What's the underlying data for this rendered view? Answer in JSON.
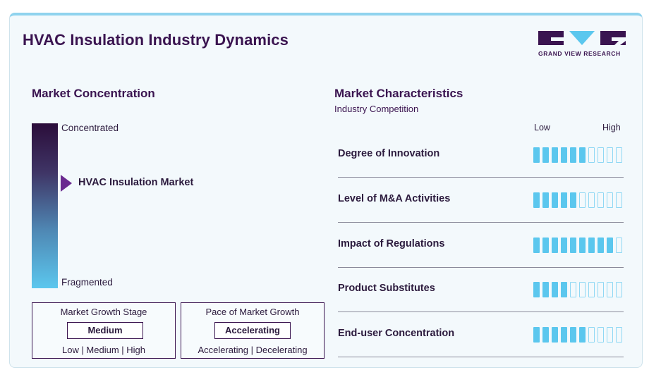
{
  "header": {
    "title": "HVAC Insulation Industry Dynamics",
    "logo_text": "GRAND VIEW RESEARCH"
  },
  "concentration": {
    "title": "Market Concentration",
    "top_label": "Concentrated",
    "bottom_label": "Fragmented",
    "market_label": "HVAC Insulation Market",
    "level": 0.38
  },
  "growth_stage": {
    "title": "Market Growth Stage",
    "value": "Medium",
    "options": "Low  |  Medium  |  High"
  },
  "growth_pace": {
    "title": "Pace of Market Growth",
    "value": "Accelerating",
    "options": "Accelerating  |  Decelerating"
  },
  "characteristics": {
    "title": "Market Characteristics",
    "subtitle": "Industry Competition",
    "low_label": "Low",
    "high_label": "High",
    "total_segments": 10,
    "rows": [
      {
        "label": "Degree of Innovation",
        "filled": 6
      },
      {
        "label": "Level of M&A Activities",
        "filled": 5
      },
      {
        "label": "Impact of Regulations",
        "filled": 9
      },
      {
        "label": "Product Substitutes",
        "filled": 4
      },
      {
        "label": "End-user Concentration",
        "filled": 6
      }
    ]
  },
  "colors": {
    "accent_purple": "#3a1450",
    "meter_cyan": "#5bc7ee",
    "arrow_purple": "#6a2a8f"
  }
}
